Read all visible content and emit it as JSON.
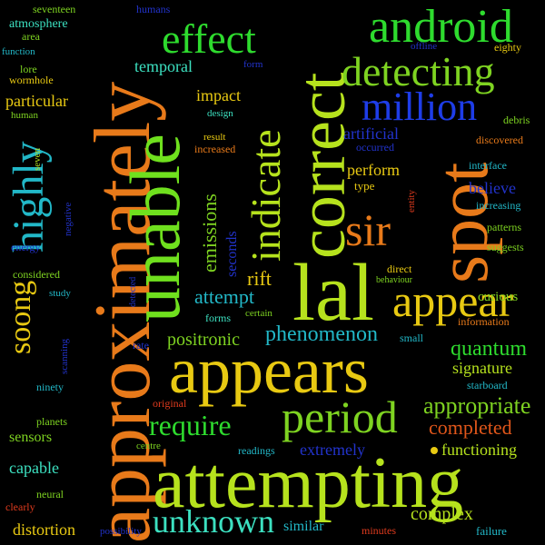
{
  "words": {
    "approximately": "approximately",
    "unable": "unable",
    "correct": "correct",
    "spot": "spot",
    "lal": "lal",
    "appears": "appears",
    "attempting": "attempting",
    "android": "android",
    "effect": "effect",
    "detecting": "detecting",
    "million": "million",
    "indicate": "indicate",
    "highly": "highly",
    "sir": "sir",
    "appear": "appear",
    "period": "period",
    "require": "require",
    "soong": "soong",
    "emissions": "emissions",
    "temporal": "temporal",
    "seventeen": "seventeen",
    "atmosphere": "atmosphere",
    "area": "area",
    "function": "function",
    "lore": "lore",
    "wormhole": "wormhole",
    "particular": "particular",
    "human": "human",
    "seven": "seven",
    "negative": "negative",
    "energy": "energy",
    "considered": "considered",
    "study": "study",
    "humans": "humans",
    "form": "form",
    "impact": "impact",
    "design": "design",
    "result": "result",
    "increased": "increased",
    "offline": "offline",
    "eighty": "eighty",
    "debris": "debris",
    "artificial": "artificial",
    "occurred": "occurred",
    "discovered": "discovered",
    "perform": "perform",
    "type": "type",
    "entity": "entity",
    "interface": "interface",
    "believe": "believe",
    "increasing": "increasing",
    "seconds": "seconds",
    "patterns": "patterns",
    "suggests": "suggests",
    "rift": "rift",
    "direct": "direct",
    "behaviour": "behaviour",
    "curious": "curious",
    "attempt": "attempt",
    "forms": "forms",
    "certain": "certain",
    "information": "information",
    "positronic": "positronic",
    "phenomenon": "phenomenon",
    "detected": "detected",
    "small": "small",
    "quantum": "quantum",
    "signature": "signature",
    "rate": "rate",
    "scanning": "scanning",
    "ninety": "ninety",
    "starboard": "starboard",
    "appropriate": "appropriate",
    "original": "original",
    "planets": "planets",
    "completed": "completed",
    "sensors": "sensors",
    "centre": "centre",
    "readings": "readings",
    "extremely": "extremely",
    "functioning": "functioning",
    "capable": "capable",
    "neural": "neural",
    "clearly": "clearly",
    "unknown": "unknown",
    "complex": "complex",
    "distortion": "distortion",
    "possibility": "possibility",
    "similar": "similar",
    "minutes": "minutes",
    "failure": "failure"
  },
  "colors": {
    "background": "#000000",
    "green": "#7ED321",
    "brightGreen": "#2EDB2E",
    "lime": "#B6E21D",
    "yellow": "#E8C912",
    "orange": "#E87A1A",
    "darkOrange": "#E0561A",
    "red": "#E03B1E",
    "blue": "#1E3DE8",
    "teal": "#22B8C8",
    "aqua": "#3CE0C0",
    "darkBlue": "#2233CC"
  }
}
